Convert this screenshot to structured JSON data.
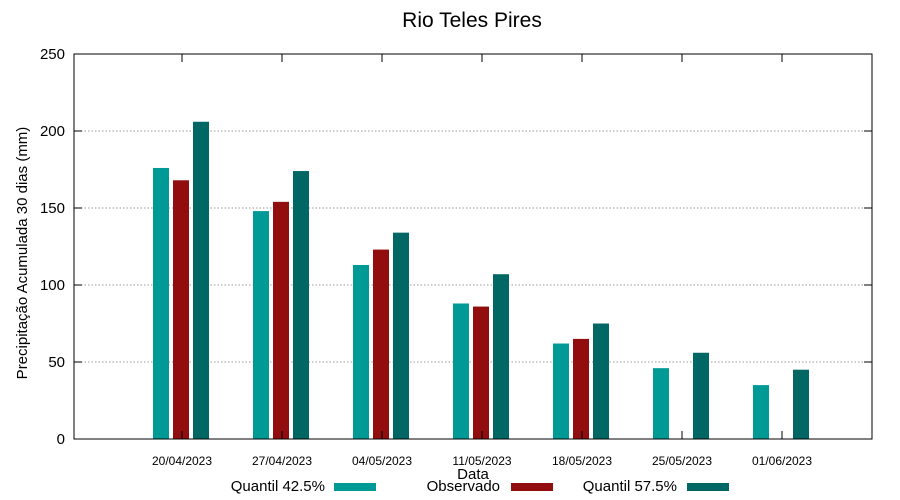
{
  "chart_data": {
    "type": "bar",
    "title": "Rio Teles Pires",
    "xlabel": "Data",
    "ylabel": "Precipitação Acumulada 30 dias (mm)",
    "ylim": [
      0,
      250
    ],
    "yticks": [
      0,
      50,
      100,
      150,
      200,
      250
    ],
    "grid": true,
    "legend": "bottom",
    "categories": [
      "20/04/2023",
      "27/04/2023",
      "04/05/2023",
      "11/05/2023",
      "18/05/2023",
      "25/05/2023",
      "01/06/2023"
    ],
    "series": [
      {
        "name": "Quantil 42.5%",
        "color": "#009a96",
        "values": [
          176,
          148,
          113,
          88,
          62,
          46,
          35
        ]
      },
      {
        "name": "Observado",
        "color": "#920e0e",
        "values": [
          168,
          154,
          123,
          86,
          65,
          null,
          null
        ]
      },
      {
        "name": "Quantil 57.5%",
        "color": "#006764",
        "values": [
          206,
          174,
          134,
          107,
          75,
          56,
          45
        ]
      }
    ]
  }
}
